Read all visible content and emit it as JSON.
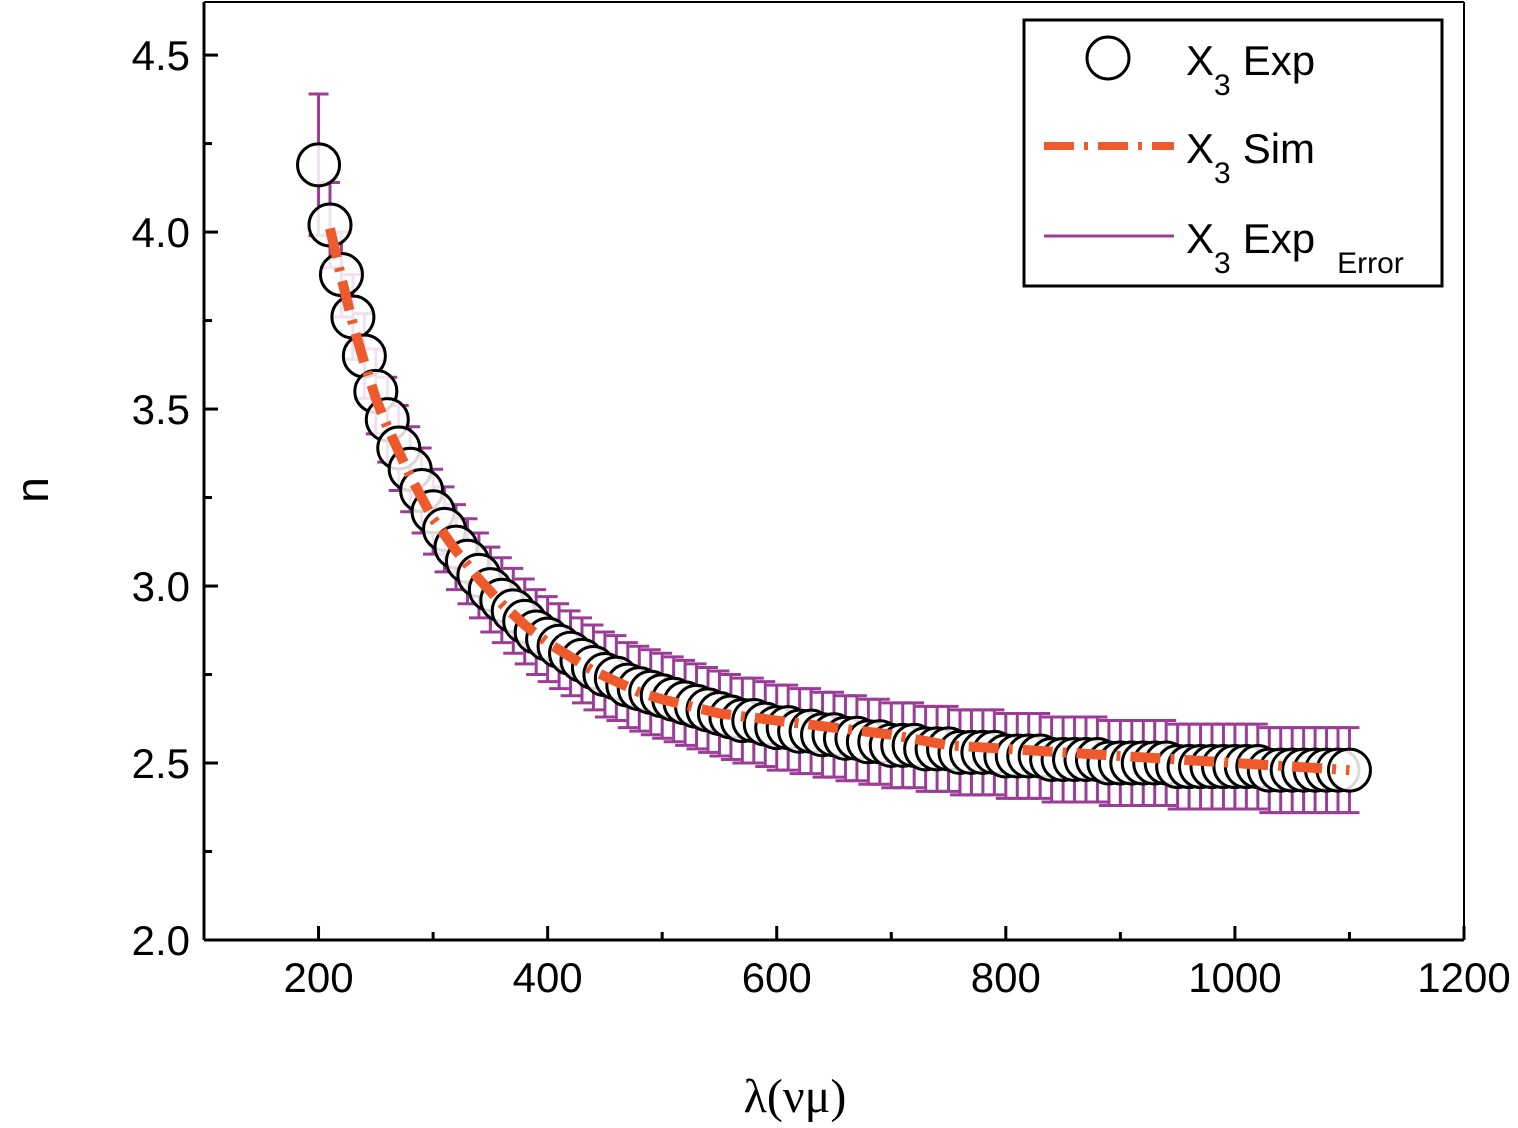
{
  "chart_data": {
    "type": "scatter",
    "xlabel": "λ(νμ)",
    "ylabel": "n",
    "xlim": [
      100,
      1200
    ],
    "ylim": [
      2.0,
      4.65
    ],
    "x_ticks": [
      200,
      400,
      600,
      800,
      1000,
      1200
    ],
    "y_ticks": [
      2.0,
      2.5,
      3.0,
      3.5,
      4.0,
      4.5
    ],
    "x_tick_labels": [
      "200",
      "400",
      "600",
      "800",
      "1000",
      "1200"
    ],
    "y_tick_labels": [
      "2.0",
      "2.5",
      "3.0",
      "3.5",
      "4.0",
      "4.5"
    ],
    "legend_position": "top-right",
    "series": [
      {
        "name_main": "X",
        "name_sub": "3",
        "name_suffix": "Exp",
        "kind": "markers",
        "marker": "open-circle",
        "color": "#000000",
        "x": [
          200,
          210,
          220,
          230,
          240,
          250,
          260,
          270,
          280,
          290,
          300,
          310,
          320,
          330,
          340,
          350,
          360,
          370,
          380,
          390,
          400,
          410,
          420,
          430,
          440,
          450,
          460,
          470,
          480,
          490,
          500,
          510,
          520,
          530,
          540,
          550,
          560,
          570,
          580,
          590,
          600,
          610,
          620,
          630,
          640,
          650,
          660,
          670,
          680,
          690,
          700,
          710,
          720,
          730,
          740,
          750,
          760,
          770,
          780,
          790,
          800,
          810,
          820,
          830,
          840,
          850,
          860,
          870,
          880,
          890,
          900,
          910,
          920,
          930,
          940,
          950,
          960,
          970,
          980,
          990,
          1000,
          1010,
          1020,
          1030,
          1040,
          1050,
          1060,
          1070,
          1080,
          1090,
          1100
        ],
        "y": [
          4.19,
          4.02,
          3.88,
          3.76,
          3.65,
          3.55,
          3.47,
          3.39,
          3.33,
          3.27,
          3.21,
          3.16,
          3.11,
          3.07,
          3.03,
          2.99,
          2.96,
          2.93,
          2.9,
          2.87,
          2.85,
          2.83,
          2.81,
          2.79,
          2.77,
          2.75,
          2.74,
          2.72,
          2.71,
          2.7,
          2.69,
          2.68,
          2.67,
          2.66,
          2.65,
          2.64,
          2.63,
          2.62,
          2.62,
          2.61,
          2.6,
          2.6,
          2.59,
          2.59,
          2.58,
          2.58,
          2.57,
          2.57,
          2.56,
          2.56,
          2.55,
          2.55,
          2.55,
          2.54,
          2.54,
          2.54,
          2.53,
          2.53,
          2.53,
          2.53,
          2.52,
          2.52,
          2.52,
          2.52,
          2.51,
          2.51,
          2.51,
          2.51,
          2.51,
          2.5,
          2.5,
          2.5,
          2.5,
          2.5,
          2.5,
          2.49,
          2.49,
          2.49,
          2.49,
          2.49,
          2.49,
          2.49,
          2.49,
          2.48,
          2.48,
          2.48,
          2.48,
          2.48,
          2.48,
          2.48,
          2.48
        ]
      },
      {
        "name_main": "X",
        "name_sub": "3",
        "name_suffix": "Sim",
        "kind": "line",
        "style": "dash-dot",
        "color": "#ee5a2c",
        "x": [
          210,
          220,
          230,
          240,
          250,
          260,
          270,
          280,
          290,
          300,
          320,
          340,
          360,
          380,
          400,
          420,
          440,
          460,
          480,
          500,
          550,
          600,
          650,
          700,
          750,
          800,
          850,
          900,
          950,
          1000,
          1050,
          1100
        ],
        "y": [
          4.01,
          3.87,
          3.74,
          3.63,
          3.53,
          3.45,
          3.38,
          3.31,
          3.25,
          3.19,
          3.1,
          3.02,
          2.95,
          2.89,
          2.84,
          2.8,
          2.76,
          2.73,
          2.7,
          2.68,
          2.64,
          2.62,
          2.6,
          2.58,
          2.55,
          2.54,
          2.53,
          2.52,
          2.51,
          2.5,
          2.49,
          2.48
        ]
      },
      {
        "name_main": "X",
        "name_sub": "3",
        "name_suffix": "Exp",
        "name_sub2": "Error",
        "kind": "error-bars",
        "color": "#9b3d97",
        "error": 0.12,
        "first_error": 0.2
      }
    ]
  }
}
